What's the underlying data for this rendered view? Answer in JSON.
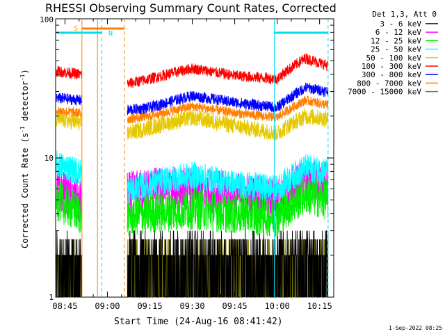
{
  "title": "RHESSI Observing Summary Count Rates, Corrected",
  "xlabel": "Start Time (24-Aug-16 08:41:42)",
  "ylabel": "Corrected Count Rate (s",
  "ylabel_sup1": "-1",
  "ylabel_mid": " detector",
  "ylabel_sup2": "-1",
  "ylabel_end": ")",
  "footer_date": "1-Sep-2022 08:25",
  "legend": {
    "header": "Det 1,3, Att 0",
    "entries": [
      {
        "label": "3 - 6 keV",
        "color": "#000000"
      },
      {
        "label": "6 - 12 keV",
        "color": "#ff00ff"
      },
      {
        "label": "12 - 25 keV",
        "color": "#00ee00"
      },
      {
        "label": "25 - 50 keV",
        "color": "#00ffff"
      },
      {
        "label": "50 - 100 keV",
        "color": "#e6c800"
      },
      {
        "label": "100 - 300 keV",
        "color": "#ff0000"
      },
      {
        "label": "300 - 800 keV",
        "color": "#0000ff"
      },
      {
        "label": "800 - 7000 keV",
        "color": "#ff8000"
      },
      {
        "label": "7000 - 15000 keV",
        "color": "#808000"
      }
    ]
  },
  "flags": {
    "saa_label": "S",
    "night_label": "N",
    "saa_color": "#ff8000",
    "night_color": "#00ddee"
  },
  "chart_data": {
    "type": "line",
    "title": "RHESSI Observing Summary Count Rates, Corrected",
    "xlabel": "Start Time (24-Aug-16 08:41:42)",
    "ylabel": "Corrected Count Rate (s^-1 detector^-1)",
    "y_scale": "log",
    "ylim": [
      1,
      100
    ],
    "y_ticks": [
      1,
      10,
      100
    ],
    "xlim": [
      "08:41:42",
      "10:20:00"
    ],
    "x_ticks": [
      "08:45",
      "09:00",
      "09:15",
      "09:30",
      "09:45",
      "10:00",
      "10:15"
    ],
    "data_gaps": [
      [
        "08:51",
        "09:07"
      ]
    ],
    "saa_interval": [
      "08:51",
      "09:06"
    ],
    "night_intervals": [
      [
        "08:41:42",
        "08:58"
      ],
      [
        "09:59",
        "10:18"
      ]
    ],
    "series": [
      {
        "name": "3 - 6 keV",
        "color": "#000000",
        "x": [
          "08:42",
          "08:50",
          "09:07",
          "09:15",
          "09:30",
          "09:45",
          "10:00",
          "10:10",
          "10:18"
        ],
        "y": [
          2.0,
          2.0,
          2.2,
          2.0,
          2.0,
          2.0,
          2.0,
          2.0,
          2.0
        ]
      },
      {
        "name": "6 - 12 keV",
        "color": "#ff00ff",
        "x": [
          "08:42",
          "08:50",
          "09:07",
          "09:15",
          "09:30",
          "09:45",
          "10:00",
          "10:10",
          "10:18"
        ],
        "y": [
          6.0,
          4.8,
          5.5,
          6.0,
          6.0,
          5.5,
          5.0,
          7.0,
          6.5
        ]
      },
      {
        "name": "12 - 25 keV",
        "color": "#00ee00",
        "x": [
          "08:42",
          "08:50",
          "09:07",
          "09:15",
          "09:30",
          "09:45",
          "10:00",
          "10:10",
          "10:18"
        ],
        "y": [
          5.0,
          4.0,
          3.8,
          4.0,
          4.3,
          4.0,
          3.8,
          5.5,
          5.0
        ]
      },
      {
        "name": "25 - 50 keV",
        "color": "#00ffff",
        "x": [
          "08:42",
          "08:50",
          "09:07",
          "09:15",
          "09:30",
          "09:45",
          "10:00",
          "10:10",
          "10:18"
        ],
        "y": [
          9.0,
          8.0,
          5.8,
          6.5,
          7.5,
          6.5,
          6.0,
          8.5,
          8.0
        ]
      },
      {
        "name": "50 - 100 keV",
        "color": "#e6c800",
        "x": [
          "08:42",
          "08:50",
          "09:07",
          "09:15",
          "09:30",
          "09:45",
          "10:00",
          "10:10",
          "10:18"
        ],
        "y": [
          19.0,
          18.0,
          15.0,
          16.5,
          19.5,
          17.0,
          15.0,
          20.0,
          19.0
        ]
      },
      {
        "name": "100 - 300 keV",
        "color": "#ff0000",
        "x": [
          "08:42",
          "08:50",
          "09:07",
          "09:15",
          "09:30",
          "09:45",
          "10:00",
          "10:10",
          "10:18"
        ],
        "y": [
          42.0,
          40.0,
          34.0,
          37.0,
          44.0,
          39.0,
          37.0,
          52.0,
          46.0
        ]
      },
      {
        "name": "300 - 800 keV",
        "color": "#0000ff",
        "x": [
          "08:42",
          "08:50",
          "09:07",
          "09:15",
          "09:30",
          "09:45",
          "10:00",
          "10:10",
          "10:18"
        ],
        "y": [
          27.0,
          26.0,
          22.0,
          23.0,
          28.0,
          25.0,
          23.0,
          32.0,
          30.0
        ]
      },
      {
        "name": "800 - 7000 keV",
        "color": "#ff8000",
        "x": [
          "08:42",
          "08:50",
          "09:07",
          "09:15",
          "09:30",
          "09:45",
          "10:00",
          "10:10",
          "10:18"
        ],
        "y": [
          22.0,
          21.0,
          19.0,
          20.0,
          23.5,
          21.0,
          19.5,
          26.0,
          24.0
        ]
      },
      {
        "name": "7000 - 15000 keV",
        "color": "#808000",
        "x": [
          "08:42",
          "08:50",
          "09:07",
          "09:15",
          "09:30",
          "09:45",
          "10:00",
          "10:10",
          "10:18"
        ],
        "y": [
          1.6,
          1.6,
          1.6,
          1.6,
          1.6,
          1.6,
          1.6,
          1.6,
          1.6
        ]
      }
    ]
  }
}
